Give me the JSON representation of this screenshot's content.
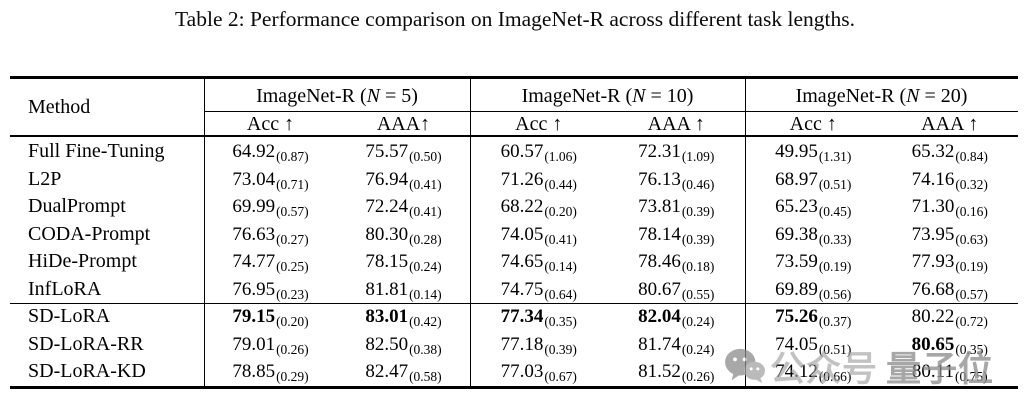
{
  "title": "Table 2: Performance comparison on ImageNet-R across different task lengths.",
  "table": {
    "method_header": "Method",
    "groups": [
      {
        "pre": "ImageNet-R (",
        "nvar": "N",
        "post": " = 5)"
      },
      {
        "pre": "ImageNet-R (",
        "nvar": "N",
        "post": " = 10)"
      },
      {
        "pre": "ImageNet-R (",
        "nvar": "N",
        "post": " = 20)"
      }
    ],
    "sub_headers": [
      "Acc ↑",
      "AAA↑",
      "Acc ↑",
      "AAA ↑",
      "Acc ↑",
      "AAA ↑"
    ],
    "section_break_after_row": 6,
    "rows": [
      {
        "method": "Full Fine-Tuning",
        "cells": [
          {
            "v": "64.92",
            "s": "(0.87)",
            "b": false
          },
          {
            "v": "75.57",
            "s": "(0.50)",
            "b": false
          },
          {
            "v": "60.57",
            "s": "(1.06)",
            "b": false
          },
          {
            "v": "72.31",
            "s": "(1.09)",
            "b": false
          },
          {
            "v": "49.95",
            "s": "(1.31)",
            "b": false
          },
          {
            "v": "65.32",
            "s": "(0.84)",
            "b": false
          }
        ]
      },
      {
        "method": "L2P",
        "cells": [
          {
            "v": "73.04",
            "s": "(0.71)",
            "b": false
          },
          {
            "v": "76.94",
            "s": "(0.41)",
            "b": false
          },
          {
            "v": "71.26",
            "s": "(0.44)",
            "b": false
          },
          {
            "v": "76.13",
            "s": "(0.46)",
            "b": false
          },
          {
            "v": "68.97",
            "s": "(0.51)",
            "b": false
          },
          {
            "v": "74.16",
            "s": "(0.32)",
            "b": false
          }
        ]
      },
      {
        "method": "DualPrompt",
        "cells": [
          {
            "v": "69.99",
            "s": "(0.57)",
            "b": false
          },
          {
            "v": "72.24",
            "s": "(0.41)",
            "b": false
          },
          {
            "v": "68.22",
            "s": "(0.20)",
            "b": false
          },
          {
            "v": "73.81",
            "s": "(0.39)",
            "b": false
          },
          {
            "v": "65.23",
            "s": "(0.45)",
            "b": false
          },
          {
            "v": "71.30",
            "s": "(0.16)",
            "b": false
          }
        ]
      },
      {
        "method": "CODA-Prompt",
        "cells": [
          {
            "v": "76.63",
            "s": "(0.27)",
            "b": false
          },
          {
            "v": "80.30",
            "s": "(0.28)",
            "b": false
          },
          {
            "v": "74.05",
            "s": "(0.41)",
            "b": false
          },
          {
            "v": "78.14",
            "s": "(0.39)",
            "b": false
          },
          {
            "v": "69.38",
            "s": "(0.33)",
            "b": false
          },
          {
            "v": "73.95",
            "s": "(0.63)",
            "b": false
          }
        ]
      },
      {
        "method": "HiDe-Prompt",
        "cells": [
          {
            "v": "74.77",
            "s": "(0.25)",
            "b": false
          },
          {
            "v": "78.15",
            "s": "(0.24)",
            "b": false
          },
          {
            "v": "74.65",
            "s": "(0.14)",
            "b": false
          },
          {
            "v": "78.46",
            "s": "(0.18)",
            "b": false
          },
          {
            "v": "73.59",
            "s": "(0.19)",
            "b": false
          },
          {
            "v": "77.93",
            "s": "(0.19)",
            "b": false
          }
        ]
      },
      {
        "method": "InfLoRA",
        "cells": [
          {
            "v": "76.95",
            "s": "(0.23)",
            "b": false
          },
          {
            "v": "81.81",
            "s": "(0.14)",
            "b": false
          },
          {
            "v": "74.75",
            "s": "(0.64)",
            "b": false
          },
          {
            "v": "80.67",
            "s": "(0.55)",
            "b": false
          },
          {
            "v": "69.89",
            "s": "(0.56)",
            "b": false
          },
          {
            "v": "76.68",
            "s": "(0.57)",
            "b": false
          }
        ]
      },
      {
        "method": "SD-LoRA",
        "cells": [
          {
            "v": "79.15",
            "s": "(0.20)",
            "b": true
          },
          {
            "v": "83.01",
            "s": "(0.42)",
            "b": true
          },
          {
            "v": "77.34",
            "s": "(0.35)",
            "b": true
          },
          {
            "v": "82.04",
            "s": "(0.24)",
            "b": true
          },
          {
            "v": "75.26",
            "s": "(0.37)",
            "b": true
          },
          {
            "v": "80.22",
            "s": "(0.72)",
            "b": false
          }
        ]
      },
      {
        "method": "SD-LoRA-RR",
        "cells": [
          {
            "v": "79.01",
            "s": "(0.26)",
            "b": false
          },
          {
            "v": "82.50",
            "s": "(0.38)",
            "b": false
          },
          {
            "v": "77.18",
            "s": "(0.39)",
            "b": false
          },
          {
            "v": "81.74",
            "s": "(0.24)",
            "b": false
          },
          {
            "v": "74.05",
            "s": "(0.51)",
            "b": false
          },
          {
            "v": "80.65",
            "s": "(0.35)",
            "b": true
          }
        ]
      },
      {
        "method": "SD-LoRA-KD",
        "cells": [
          {
            "v": "78.85",
            "s": "(0.29)",
            "b": false
          },
          {
            "v": "82.47",
            "s": "(0.58)",
            "b": false
          },
          {
            "v": "77.03",
            "s": "(0.67)",
            "b": false
          },
          {
            "v": "81.52",
            "s": "(0.26)",
            "b": false
          },
          {
            "v": "74.12",
            "s": "(0.66)",
            "b": false
          },
          {
            "v": "80.11",
            "s": "(0.75)",
            "b": false
          }
        ]
      }
    ]
  },
  "watermark": {
    "icon": "wechat-icon",
    "text1": "公众号",
    "text2": "量子位",
    "color": "#9d9d9d"
  }
}
